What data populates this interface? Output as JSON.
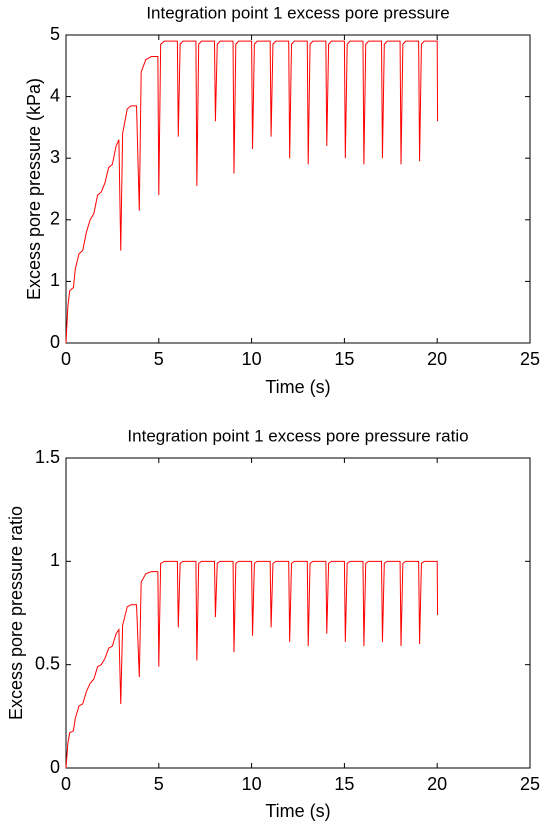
{
  "chart_data": [
    {
      "type": "line",
      "title": "Integration point 1 excess pore pressure",
      "x_label": "Time (s)",
      "y_label": "Excess pore pressure (kPa)",
      "xlim": [
        0,
        25
      ],
      "xticks": [
        0,
        5,
        10,
        15,
        20,
        25
      ],
      "ylim": [
        0,
        5
      ],
      "yticks": [
        0,
        1,
        2,
        3,
        4,
        5
      ],
      "color": "#ff0000",
      "x": [
        0,
        0.1,
        0.2,
        0.4,
        0.5,
        0.7,
        0.9,
        1.1,
        1.3,
        1.5,
        1.7,
        1.9,
        2.1,
        2.3,
        2.5,
        2.7,
        2.85,
        2.95,
        3.05,
        3.3,
        3.5,
        3.8,
        3.95,
        4.05,
        4.3,
        4.6,
        4.95,
        5,
        5.1,
        5.3,
        6,
        6.05,
        6.15,
        6.3,
        7,
        7.05,
        7.15,
        7.3,
        8,
        8.05,
        8.15,
        8.3,
        9,
        9.05,
        9.15,
        9.3,
        10,
        10.05,
        10.15,
        10.3,
        11,
        11.05,
        11.15,
        11.3,
        12,
        12.05,
        12.15,
        12.3,
        13,
        13.05,
        13.15,
        13.3,
        14,
        14.05,
        14.15,
        14.3,
        15,
        15.05,
        15.15,
        15.3,
        16,
        16.05,
        16.15,
        16.3,
        17,
        17.05,
        17.15,
        17.3,
        18,
        18.05,
        18.15,
        18.3,
        19,
        19.05,
        19.15,
        19.3,
        20,
        20.02
      ],
      "values": [
        0,
        0.6,
        0.85,
        0.9,
        1.2,
        1.45,
        1.5,
        1.8,
        2.0,
        2.1,
        2.4,
        2.45,
        2.6,
        2.85,
        2.9,
        3.2,
        3.3,
        1.5,
        3.4,
        3.8,
        3.85,
        3.85,
        2.15,
        4.4,
        4.6,
        4.65,
        4.65,
        2.4,
        4.85,
        4.9,
        4.9,
        3.35,
        4.85,
        4.9,
        4.9,
        2.55,
        4.85,
        4.9,
        4.9,
        3.6,
        4.85,
        4.9,
        4.9,
        2.75,
        4.85,
        4.9,
        4.9,
        3.15,
        4.85,
        4.9,
        4.9,
        3.35,
        4.85,
        4.9,
        4.9,
        3.0,
        4.85,
        4.9,
        4.9,
        2.9,
        4.85,
        4.9,
        4.9,
        3.2,
        4.85,
        4.9,
        4.9,
        3.0,
        4.85,
        4.9,
        4.9,
        2.9,
        4.85,
        4.9,
        4.9,
        3.0,
        4.85,
        4.9,
        4.9,
        2.9,
        4.85,
        4.9,
        4.9,
        2.95,
        4.85,
        4.9,
        4.9,
        3.6
      ]
    },
    {
      "type": "line",
      "title": "Integration point 1 excess pore pressure ratio",
      "x_label": "Time (s)",
      "y_label": "Excess pore pressure ratio",
      "xlim": [
        0,
        25
      ],
      "xticks": [
        0,
        5,
        10,
        15,
        20,
        25
      ],
      "ylim": [
        0,
        1.5
      ],
      "yticks": [
        0,
        0.5,
        1,
        1.5
      ],
      "color": "#ff0000",
      "x": [
        0,
        0.1,
        0.2,
        0.4,
        0.5,
        0.7,
        0.9,
        1.1,
        1.3,
        1.5,
        1.7,
        1.9,
        2.1,
        2.3,
        2.5,
        2.7,
        2.85,
        2.95,
        3.05,
        3.3,
        3.5,
        3.8,
        3.95,
        4.05,
        4.3,
        4.6,
        4.95,
        5,
        5.1,
        5.3,
        6,
        6.05,
        6.15,
        6.3,
        7,
        7.05,
        7.15,
        7.3,
        8,
        8.05,
        8.15,
        8.3,
        9,
        9.05,
        9.15,
        9.3,
        10,
        10.05,
        10.15,
        10.3,
        11,
        11.05,
        11.15,
        11.3,
        12,
        12.05,
        12.15,
        12.3,
        13,
        13.05,
        13.15,
        13.3,
        14,
        14.05,
        14.15,
        14.3,
        15,
        15.05,
        15.15,
        15.3,
        16,
        16.05,
        16.15,
        16.3,
        17,
        17.05,
        17.15,
        17.3,
        18,
        18.05,
        18.15,
        18.3,
        19,
        19.05,
        19.15,
        19.3,
        20,
        20.02
      ],
      "values": [
        0,
        0.12,
        0.17,
        0.18,
        0.24,
        0.3,
        0.31,
        0.37,
        0.41,
        0.43,
        0.49,
        0.5,
        0.53,
        0.58,
        0.59,
        0.65,
        0.67,
        0.31,
        0.69,
        0.78,
        0.79,
        0.79,
        0.44,
        0.9,
        0.94,
        0.95,
        0.95,
        0.49,
        0.99,
        1.0,
        1.0,
        0.68,
        0.99,
        1.0,
        1.0,
        0.52,
        0.99,
        1.0,
        1.0,
        0.73,
        0.99,
        1.0,
        1.0,
        0.56,
        0.99,
        1.0,
        1.0,
        0.64,
        0.99,
        1.0,
        1.0,
        0.68,
        0.99,
        1.0,
        1.0,
        0.61,
        0.99,
        1.0,
        1.0,
        0.59,
        0.99,
        1.0,
        1.0,
        0.65,
        0.99,
        1.0,
        1.0,
        0.61,
        0.99,
        1.0,
        1.0,
        0.59,
        0.99,
        1.0,
        1.0,
        0.61,
        0.99,
        1.0,
        1.0,
        0.59,
        0.99,
        1.0,
        1.0,
        0.6,
        0.99,
        1.0,
        1.0,
        0.74
      ]
    }
  ]
}
